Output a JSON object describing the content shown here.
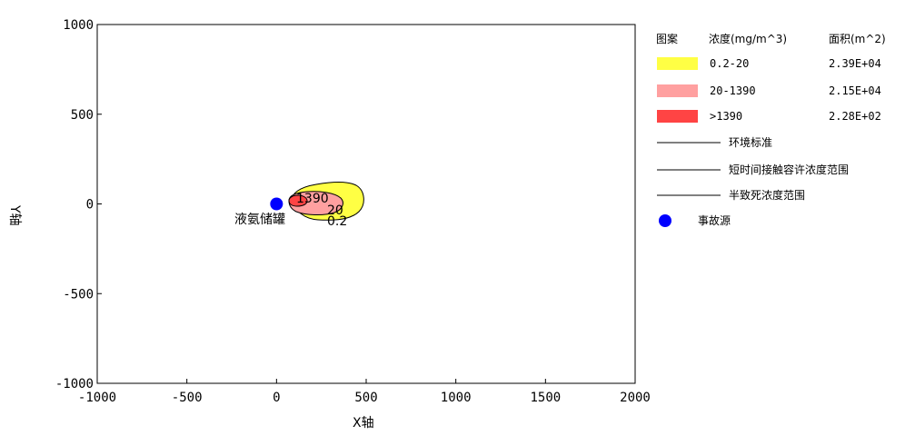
{
  "chart_data": {
    "type": "contour",
    "xlabel": "X轴",
    "ylabel": "Y轴",
    "xlim": [
      -1000,
      2000
    ],
    "ylim": [
      -1000,
      1000
    ],
    "x_ticks": [
      -1000,
      -500,
      0,
      500,
      1000,
      1500,
      2000
    ],
    "y_ticks": [
      1000,
      500,
      0,
      -500,
      -1000
    ],
    "x_tick_labels": [
      "-1000",
      "-500",
      "0",
      "500",
      "1000",
      "1500",
      "2000"
    ],
    "y_tick_labels": [
      "1000",
      "500",
      "0",
      "-500",
      "-1000"
    ],
    "grid": false,
    "legend": {
      "placement": "right",
      "headers": [
        "图案",
        "浓度(mg/m^3)",
        "面积(m^2)"
      ],
      "bands": [
        {
          "range": "0.2-20",
          "area": "2.39E+04",
          "color": "#ffff44"
        },
        {
          "range": "20-1390",
          "area": "2.15E+04",
          "color": "#ffa0a0"
        },
        {
          "range": ">1390",
          "area": "2.28E+02",
          "color": "#ff4444"
        }
      ],
      "lines": [
        "环境标准",
        "短时间接触容许浓度范围",
        "半致死浓度范围"
      ],
      "source_label": "事故源"
    },
    "source": {
      "x": 0,
      "y": 0,
      "color": "#0000ff"
    },
    "annotations": {
      "source_name": "液氨储罐",
      "contour_1390": "1390",
      "contour_20": "20",
      "contour_02": "0.2"
    }
  }
}
